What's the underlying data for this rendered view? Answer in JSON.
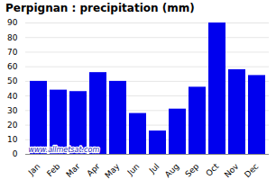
{
  "chart_data": {
    "type": "bar",
    "title": "Perpignan : precipitation (mm)",
    "categories": [
      "Jan",
      "Feb",
      "Mar",
      "Apr",
      "May",
      "Jun",
      "Jul",
      "Aug",
      "Sep",
      "Oct",
      "Nov",
      "Dec"
    ],
    "values": [
      50,
      44,
      43,
      56,
      50,
      28,
      16,
      31,
      46,
      90,
      58,
      54
    ],
    "color": "#0000ee",
    "ylim": [
      0,
      90
    ],
    "yticks": [
      0,
      10,
      20,
      30,
      40,
      50,
      60,
      70,
      80,
      90
    ],
    "grid": true,
    "annotation": "www.allmetsat.com"
  }
}
